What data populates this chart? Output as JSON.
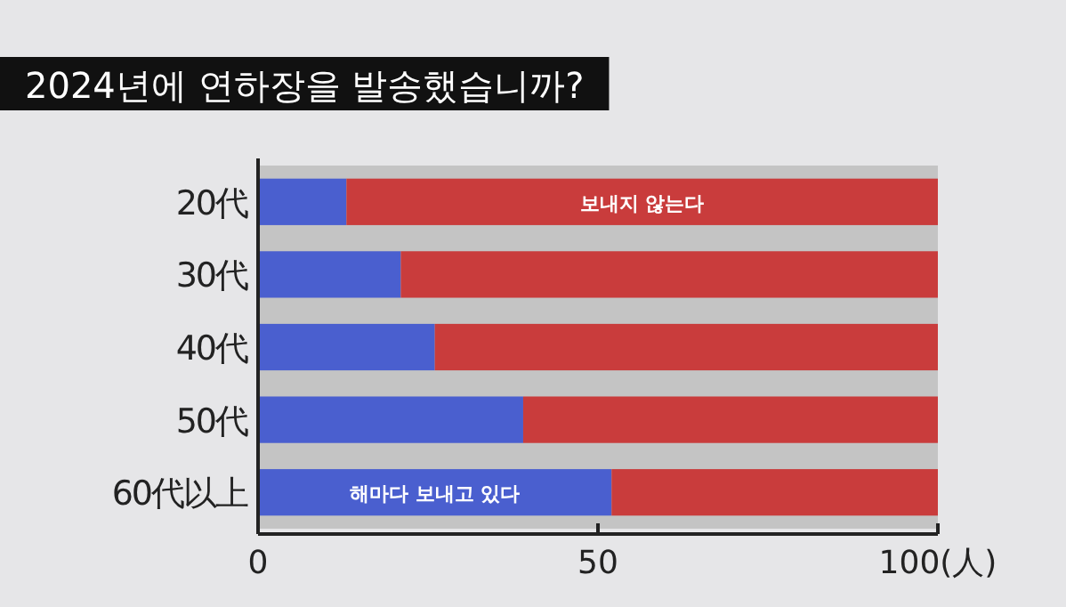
{
  "chart_data": {
    "type": "bar",
    "title": "2024년에 연하장을 발송했습니까?",
    "orientation": "horizontal",
    "stacked": true,
    "categories": [
      "20代",
      "30代",
      "40代",
      "50代",
      "60代以上"
    ],
    "series": [
      {
        "name": "해마다 보내고 있다",
        "color": "#4a5fcf",
        "values": [
          13,
          21,
          26,
          39,
          52
        ]
      },
      {
        "name": "보내지 않는다",
        "color": "#c93c3c",
        "values": [
          87,
          79,
          74,
          61,
          48
        ]
      }
    ],
    "xlim": [
      0,
      100
    ],
    "xticks": [
      0,
      50,
      {
        "value": 100,
        "label": "100(人)"
      }
    ],
    "grid": false
  }
}
